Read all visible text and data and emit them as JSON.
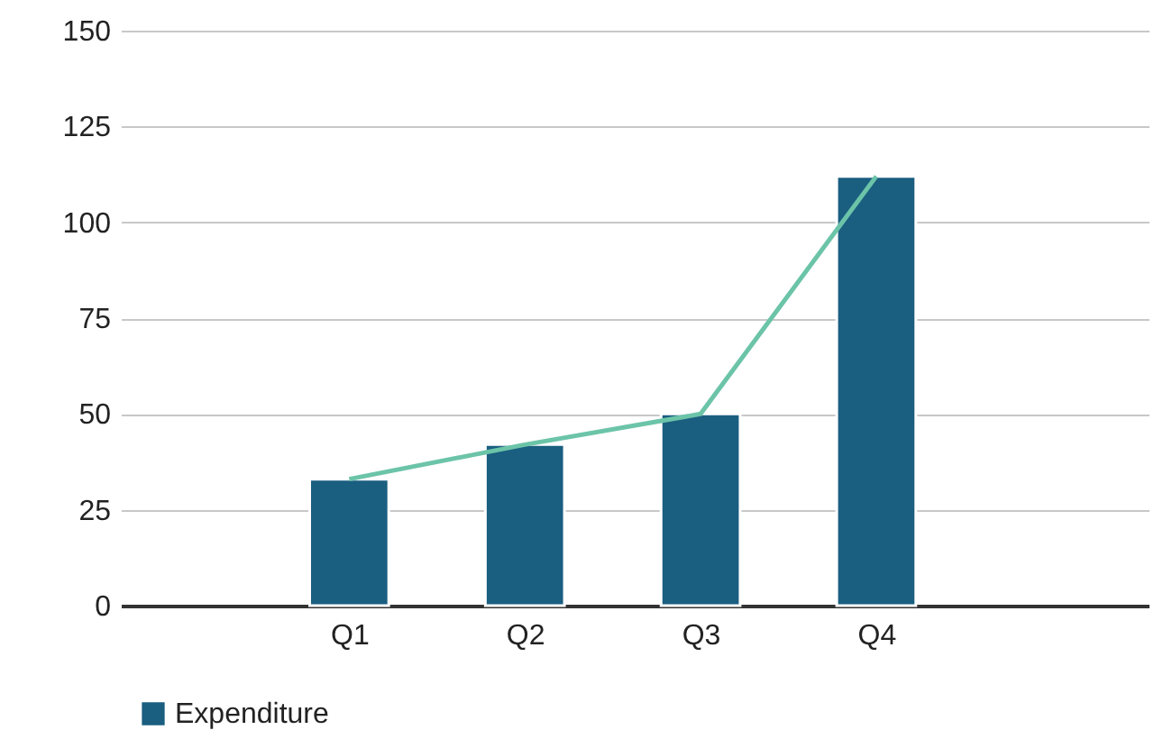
{
  "chart_data": {
    "type": "bar",
    "categories": [
      "Q1",
      "Q2",
      "Q3",
      "Q4"
    ],
    "series": [
      {
        "name": "Expenditure",
        "color": "#1a5e80",
        "values": [
          33,
          42,
          50,
          112
        ]
      },
      {
        "type": "line",
        "color": "#6cc4a8",
        "values": [
          33,
          42,
          50,
          112
        ]
      }
    ],
    "ylim": [
      0,
      150
    ],
    "yticks": [
      0,
      25,
      50,
      75,
      100,
      125,
      150
    ],
    "grid": "y",
    "legend": "bottom"
  }
}
